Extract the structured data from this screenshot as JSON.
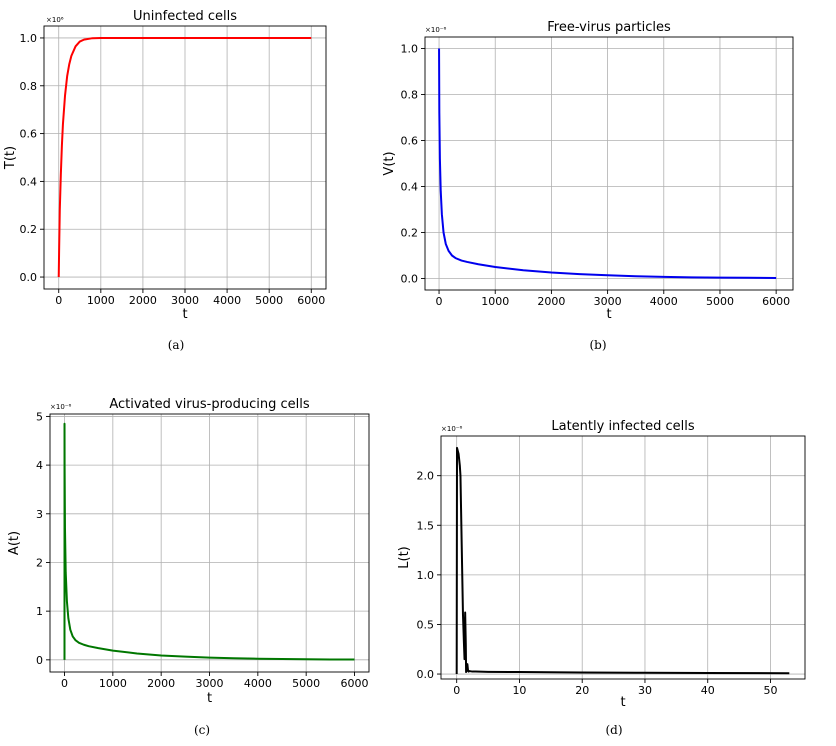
{
  "chart_data": [
    {
      "type": "line",
      "panel": "a",
      "caption": "(a)",
      "title": "Uninfected cells",
      "xlabel": "t",
      "ylabel": "T(t)",
      "y_multiplier": "×10⁶",
      "xlim": [
        -350,
        6350
      ],
      "ylim": [
        -0.05,
        1.05
      ],
      "xticks": [
        0,
        1000,
        2000,
        3000,
        4000,
        5000,
        6000
      ],
      "xtick_labels": [
        "0",
        "1000",
        "2000",
        "3000",
        "4000",
        "5000",
        "6000"
      ],
      "yticks": [
        0.0,
        0.2,
        0.4,
        0.6,
        0.8,
        1.0
      ],
      "ytick_labels": [
        "0.0",
        "0.2",
        "0.4",
        "0.6",
        "0.8",
        "1.0"
      ],
      "grid": true,
      "series": [
        {
          "color": "#ff0000",
          "x": [
            0,
            10,
            25,
            50,
            75,
            100,
            150,
            200,
            250,
            300,
            400,
            500,
            600,
            800,
            1000,
            2000,
            3000,
            4000,
            5000,
            6000
          ],
          "y": [
            0.0,
            0.12,
            0.28,
            0.43,
            0.55,
            0.64,
            0.76,
            0.84,
            0.89,
            0.925,
            0.965,
            0.985,
            0.993,
            0.999,
            1.0,
            1.0,
            1.0,
            1.0,
            1.0,
            1.0
          ]
        }
      ]
    },
    {
      "type": "line",
      "panel": "b",
      "caption": "(b)",
      "title": "Free-virus particles",
      "xlabel": "t",
      "ylabel": "V(t)",
      "y_multiplier": "×10⁻⁶",
      "xlim": [
        -250,
        6300
      ],
      "ylim": [
        -0.05,
        1.05
      ],
      "xticks": [
        0,
        1000,
        2000,
        3000,
        4000,
        5000,
        6000
      ],
      "xtick_labels": [
        "0",
        "1000",
        "2000",
        "3000",
        "4000",
        "5000",
        "6000"
      ],
      "yticks": [
        0.0,
        0.2,
        0.4,
        0.6,
        0.8,
        1.0
      ],
      "ytick_labels": [
        "0.0",
        "0.2",
        "0.4",
        "0.6",
        "0.8",
        "1.0"
      ],
      "grid": true,
      "series": [
        {
          "color": "#0000ee",
          "x": [
            0,
            5,
            15,
            30,
            50,
            80,
            120,
            170,
            230,
            300,
            400,
            500,
            700,
            1000,
            1500,
            2000,
            2500,
            3000,
            3500,
            4000,
            4500,
            5000,
            5500,
            6000
          ],
          "y": [
            1.0,
            0.72,
            0.52,
            0.38,
            0.28,
            0.2,
            0.15,
            0.12,
            0.1,
            0.088,
            0.078,
            0.072,
            0.062,
            0.05,
            0.036,
            0.026,
            0.019,
            0.014,
            0.01,
            0.007,
            0.005,
            0.004,
            0.003,
            0.002
          ]
        }
      ]
    },
    {
      "type": "line",
      "panel": "c",
      "caption": "(c)",
      "title": "Activated virus-producing cells",
      "xlabel": "t",
      "ylabel": "A(t)",
      "y_multiplier": "×10⁻⁶",
      "xlim": [
        -300,
        6300
      ],
      "ylim": [
        -0.25,
        5.05
      ],
      "xticks": [
        0,
        1000,
        2000,
        3000,
        4000,
        5000,
        6000
      ],
      "xtick_labels": [
        "0",
        "1000",
        "2000",
        "3000",
        "4000",
        "5000",
        "6000"
      ],
      "yticks": [
        0,
        1,
        2,
        3,
        4,
        5
      ],
      "ytick_labels": [
        "0",
        "1",
        "2",
        "3",
        "4",
        "5"
      ],
      "grid": true,
      "series": [
        {
          "color": "#007700",
          "x": [
            0,
            0.5,
            2,
            10,
            25,
            50,
            80,
            120,
            170,
            230,
            300,
            400,
            500,
            700,
            1000,
            1500,
            2000,
            2500,
            3000,
            3500,
            4000,
            4500,
            5000,
            5500,
            6000
          ],
          "y": [
            0.0,
            4.85,
            4.0,
            2.7,
            1.8,
            1.2,
            0.85,
            0.62,
            0.48,
            0.4,
            0.35,
            0.31,
            0.28,
            0.24,
            0.19,
            0.13,
            0.09,
            0.065,
            0.045,
            0.032,
            0.023,
            0.016,
            0.011,
            0.008,
            0.006
          ]
        }
      ]
    },
    {
      "type": "line",
      "panel": "d",
      "caption": "(d)",
      "title": "Latently infected cells",
      "xlabel": "t",
      "ylabel": "L(t)",
      "y_multiplier": "×10⁻⁶",
      "xlim": [
        -2.5,
        55.5
      ],
      "ylim": [
        -0.05,
        2.4
      ],
      "xticks": [
        0,
        10,
        20,
        30,
        40,
        50
      ],
      "xtick_labels": [
        "0",
        "10",
        "20",
        "30",
        "40",
        "50"
      ],
      "yticks": [
        0.0,
        0.5,
        1.0,
        1.5,
        2.0
      ],
      "ytick_labels": [
        "0.0",
        "0.5",
        "1.0",
        "1.5",
        "2.0"
      ],
      "grid": true,
      "series": [
        {
          "color": "#000000",
          "x": [
            0,
            0.05,
            0.3,
            0.5,
            0.6,
            0.8,
            1.0,
            1.15,
            1.25,
            1.35,
            1.45,
            1.5,
            1.55,
            1.6,
            1.7,
            1.8,
            1.9,
            2.0,
            2.5,
            3,
            5,
            10,
            20,
            30,
            40,
            53
          ],
          "y": [
            0.0,
            2.28,
            2.22,
            2.1,
            2.0,
            1.3,
            0.6,
            0.32,
            0.15,
            0.62,
            0.3,
            0.02,
            0.06,
            0.03,
            0.1,
            0.04,
            0.025,
            0.03,
            0.025,
            0.025,
            0.022,
            0.02,
            0.016,
            0.013,
            0.01,
            0.008
          ]
        }
      ]
    }
  ]
}
